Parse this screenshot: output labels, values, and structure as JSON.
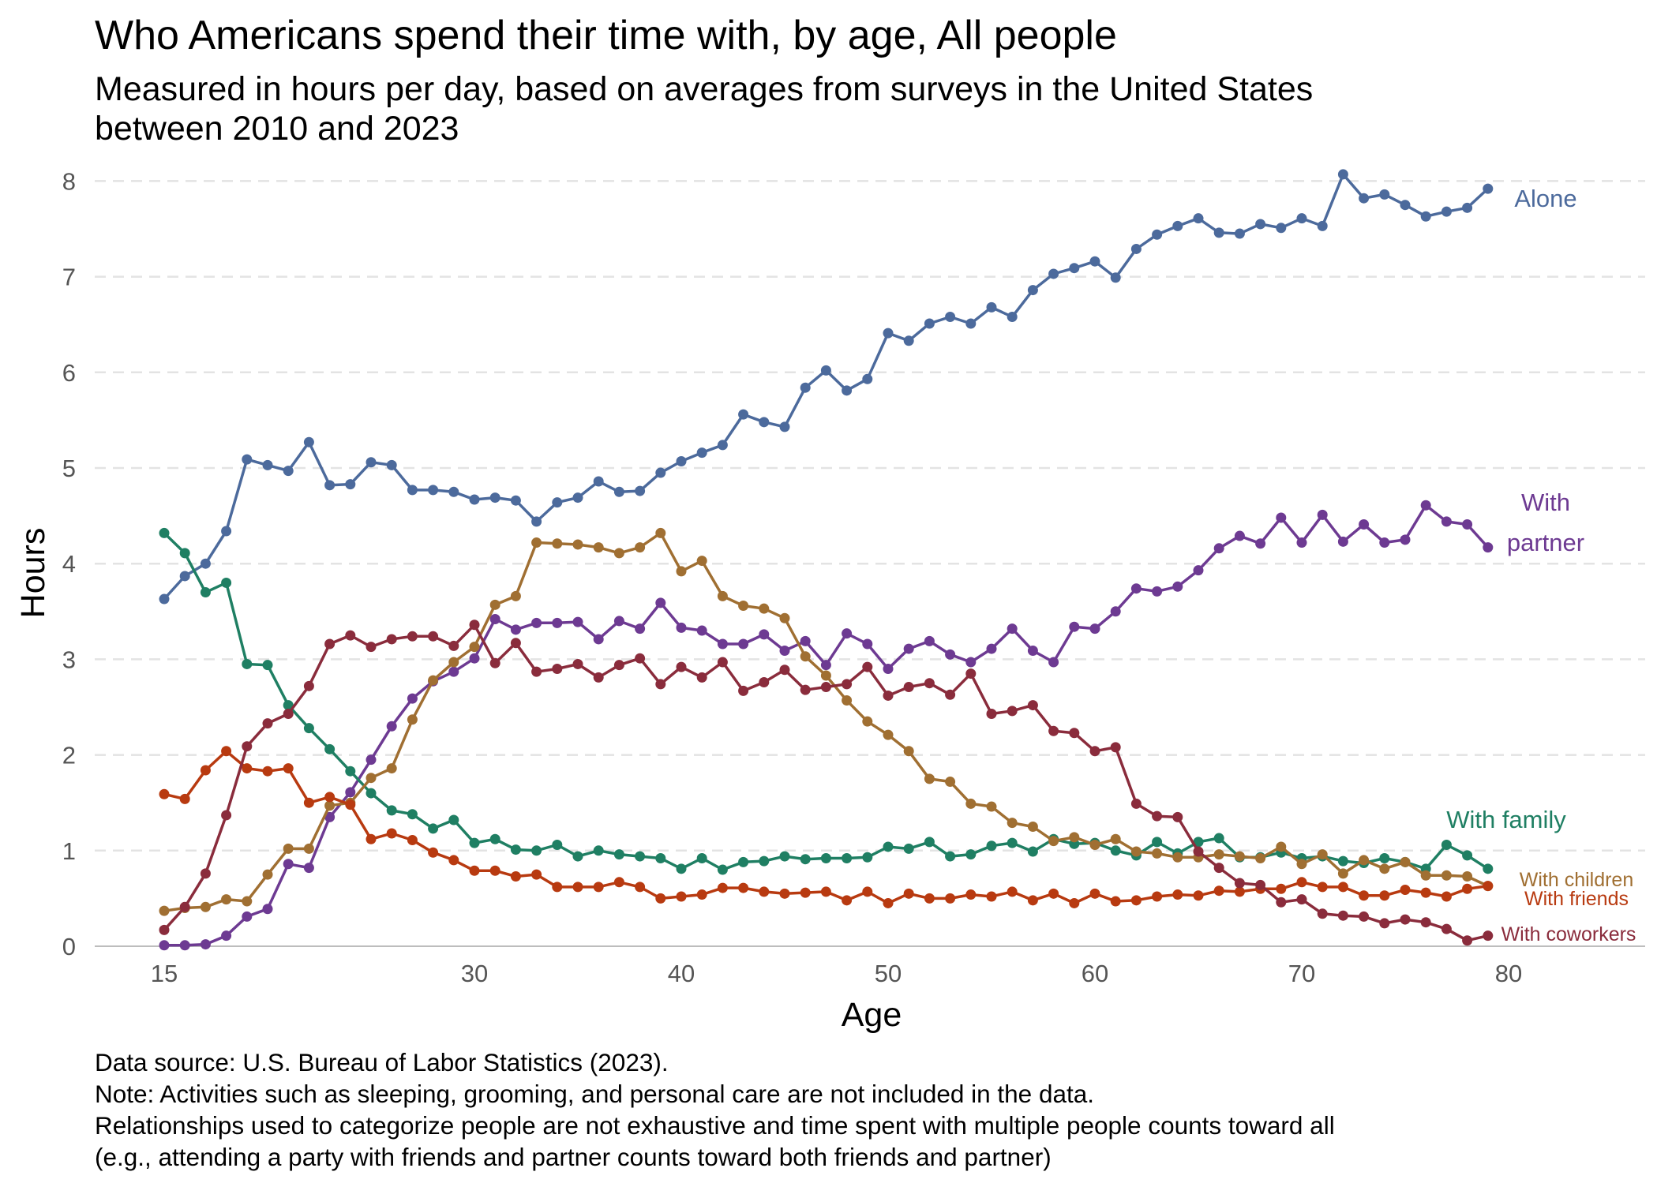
{
  "chart_data": {
    "type": "line",
    "title": "Who Americans spend their time with, by age, All people",
    "subtitle_lines": [
      "Measured in hours per day, based on averages from surveys in the United States",
      "between 2010 and 2023"
    ],
    "xlabel": "Age",
    "ylabel": "Hours",
    "xlim": [
      15,
      80
    ],
    "ylim": [
      0,
      8
    ],
    "x_ticks": [
      15,
      30,
      40,
      50,
      60,
      70,
      80
    ],
    "y_ticks": [
      0,
      1,
      2,
      3,
      4,
      5,
      6,
      7,
      8
    ],
    "grid": "horizontal dashed",
    "x": [
      15,
      16,
      17,
      18,
      19,
      20,
      21,
      22,
      23,
      24,
      25,
      26,
      27,
      28,
      29,
      30,
      31,
      32,
      33,
      34,
      35,
      36,
      37,
      38,
      39,
      40,
      41,
      42,
      43,
      44,
      45,
      46,
      47,
      48,
      49,
      50,
      51,
      52,
      53,
      54,
      55,
      56,
      57,
      58,
      59,
      60,
      61,
      62,
      63,
      64,
      65,
      66,
      67,
      68,
      69,
      70,
      71,
      72,
      73,
      74,
      75,
      76,
      77,
      78,
      79
    ],
    "series": [
      {
        "name": "Alone",
        "label_lines": [
          "Alone"
        ],
        "color": "#4c6a9c",
        "values": [
          3.63,
          3.87,
          4.0,
          4.34,
          5.09,
          5.03,
          4.97,
          5.27,
          4.82,
          4.83,
          5.06,
          5.03,
          4.77,
          4.77,
          4.75,
          4.67,
          4.69,
          4.66,
          4.44,
          4.64,
          4.69,
          4.86,
          4.75,
          4.76,
          4.95,
          5.07,
          5.16,
          5.24,
          5.56,
          5.48,
          5.43,
          5.84,
          6.02,
          5.81,
          5.93,
          6.41,
          6.33,
          6.51,
          6.58,
          6.51,
          6.68,
          6.58,
          6.86,
          7.03,
          7.09,
          7.16,
          6.99,
          7.29,
          7.44,
          7.53,
          7.61,
          7.46,
          7.45,
          7.55,
          7.51,
          7.61,
          7.53,
          8.07,
          7.82,
          7.86,
          7.75,
          7.63,
          7.68,
          7.72,
          7.92
        ]
      },
      {
        "name": "With partner",
        "label_lines": [
          "With",
          "partner"
        ],
        "color": "#6d3a92",
        "values": [
          0.01,
          0.01,
          0.02,
          0.11,
          0.31,
          0.39,
          0.86,
          0.82,
          1.35,
          1.61,
          1.95,
          2.3,
          2.59,
          2.77,
          2.87,
          3.01,
          3.42,
          3.31,
          3.38,
          3.38,
          3.39,
          3.21,
          3.4,
          3.32,
          3.59,
          3.33,
          3.3,
          3.16,
          3.16,
          3.26,
          3.09,
          3.19,
          2.94,
          3.27,
          3.16,
          2.9,
          3.11,
          3.19,
          3.05,
          2.97,
          3.11,
          3.32,
          3.09,
          2.97,
          3.34,
          3.32,
          3.5,
          3.74,
          3.71,
          3.76,
          3.93,
          4.16,
          4.29,
          4.21,
          4.48,
          4.22,
          4.51,
          4.23,
          4.41,
          4.22,
          4.25,
          4.61,
          4.44,
          4.41,
          4.17
        ]
      },
      {
        "name": "With family",
        "label_lines": [
          "With family"
        ],
        "color": "#1f7f63",
        "values": [
          4.32,
          4.11,
          3.7,
          3.8,
          2.95,
          2.94,
          2.52,
          2.28,
          2.06,
          1.83,
          1.6,
          1.42,
          1.38,
          1.23,
          1.32,
          1.08,
          1.12,
          1.01,
          1.0,
          1.06,
          0.94,
          1.0,
          0.96,
          0.94,
          0.92,
          0.81,
          0.92,
          0.8,
          0.88,
          0.89,
          0.94,
          0.91,
          0.92,
          0.92,
          0.93,
          1.04,
          1.02,
          1.09,
          0.94,
          0.96,
          1.05,
          1.08,
          0.99,
          1.12,
          1.07,
          1.08,
          1.0,
          0.95,
          1.09,
          0.97,
          1.09,
          1.13,
          0.93,
          0.93,
          0.98,
          0.92,
          0.94,
          0.89,
          0.87,
          0.92,
          0.88,
          0.81,
          1.06,
          0.95,
          0.81
        ]
      },
      {
        "name": "With children",
        "label_lines": [
          "With children"
        ],
        "color": "#a06f32",
        "values": [
          0.37,
          0.4,
          0.41,
          0.49,
          0.47,
          0.75,
          1.02,
          1.02,
          1.47,
          1.5,
          1.76,
          1.86,
          2.37,
          2.78,
          2.97,
          3.13,
          3.57,
          3.66,
          4.22,
          4.21,
          4.2,
          4.17,
          4.11,
          4.17,
          4.32,
          3.92,
          4.03,
          3.66,
          3.56,
          3.53,
          3.43,
          3.03,
          2.83,
          2.57,
          2.35,
          2.21,
          2.04,
          1.75,
          1.72,
          1.49,
          1.46,
          1.29,
          1.25,
          1.1,
          1.14,
          1.06,
          1.12,
          0.99,
          0.97,
          0.93,
          0.93,
          0.96,
          0.94,
          0.92,
          1.04,
          0.86,
          0.96,
          0.76,
          0.9,
          0.81,
          0.88,
          0.74,
          0.74,
          0.73,
          0.63
        ]
      },
      {
        "name": "With friends",
        "label_lines": [
          "With friends"
        ],
        "color": "#b83a10",
        "values": [
          1.59,
          1.54,
          1.84,
          2.04,
          1.86,
          1.83,
          1.86,
          1.5,
          1.56,
          1.48,
          1.12,
          1.18,
          1.11,
          0.98,
          0.9,
          0.79,
          0.79,
          0.73,
          0.75,
          0.62,
          0.62,
          0.62,
          0.67,
          0.62,
          0.5,
          0.52,
          0.54,
          0.61,
          0.61,
          0.57,
          0.55,
          0.56,
          0.57,
          0.48,
          0.57,
          0.45,
          0.55,
          0.5,
          0.5,
          0.54,
          0.52,
          0.57,
          0.48,
          0.55,
          0.45,
          0.55,
          0.47,
          0.48,
          0.52,
          0.54,
          0.53,
          0.58,
          0.57,
          0.6,
          0.6,
          0.67,
          0.62,
          0.62,
          0.53,
          0.53,
          0.59,
          0.56,
          0.52,
          0.6,
          0.63
        ]
      },
      {
        "name": "With coworkers",
        "label_lines": [
          "With coworkers"
        ],
        "color": "#8a2c3c",
        "values": [
          0.17,
          0.41,
          0.76,
          1.37,
          2.09,
          2.33,
          2.43,
          2.72,
          3.16,
          3.25,
          3.13,
          3.21,
          3.24,
          3.24,
          3.14,
          3.36,
          2.96,
          3.17,
          2.87,
          2.9,
          2.95,
          2.81,
          2.94,
          3.01,
          2.74,
          2.92,
          2.81,
          2.97,
          2.67,
          2.76,
          2.89,
          2.68,
          2.71,
          2.74,
          2.92,
          2.62,
          2.71,
          2.75,
          2.63,
          2.85,
          2.43,
          2.46,
          2.52,
          2.25,
          2.23,
          2.04,
          2.08,
          1.49,
          1.36,
          1.35,
          0.99,
          0.82,
          0.66,
          0.64,
          0.46,
          0.49,
          0.34,
          0.32,
          0.31,
          0.24,
          0.28,
          0.25,
          0.18,
          0.06,
          0.11
        ]
      }
    ]
  },
  "notes": [
    "Data source: U.S. Bureau of Labor Statistics (2023).",
    "Note: Activities such as sleeping, grooming, and personal care are not included in the data.",
    "Relationships used to categorize people are not exhaustive and time spent with multiple people counts toward all",
    "(e.g., attending a party with friends and partner counts toward both friends and partner)"
  ]
}
